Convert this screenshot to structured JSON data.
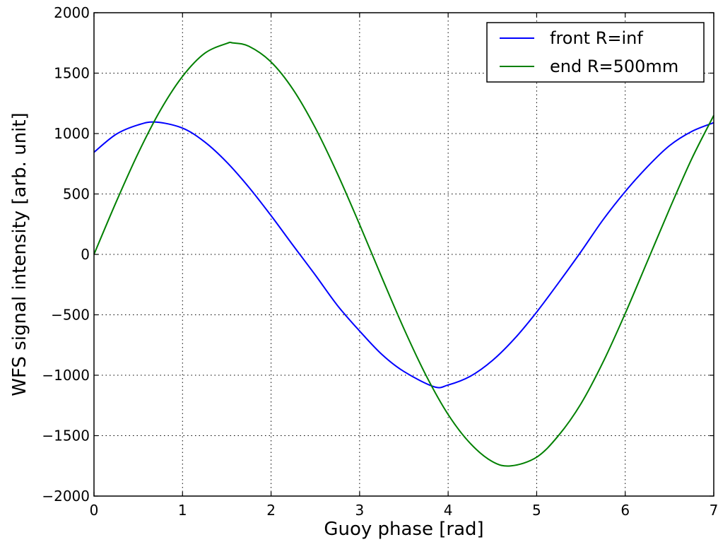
{
  "chart_data": {
    "type": "line",
    "title": "",
    "xlabel": "Guoy phase [rad]",
    "ylabel": "WFS signal intensity [arb. unit]",
    "xlim": [
      0,
      7
    ],
    "ylim": [
      -2000,
      2000
    ],
    "xticks": [
      0,
      1,
      2,
      3,
      4,
      5,
      6,
      7
    ],
    "xtick_labels": [
      "0",
      "1",
      "2",
      "3",
      "4",
      "5",
      "6",
      "7"
    ],
    "yticks": [
      -2000,
      -1500,
      -1000,
      -500,
      0,
      500,
      1000,
      1500,
      2000
    ],
    "ytick_labels": [
      "−2000",
      "−1500",
      "−1000",
      "−500",
      "0",
      "500",
      "1000",
      "1500",
      "2000"
    ],
    "grid": true,
    "legend_position": "top-right",
    "series": [
      {
        "name": "front R=inf",
        "color": "#0000ff",
        "x": [
          0.0,
          0.25,
          0.5,
          0.7,
          1.0,
          1.25,
          1.5,
          1.75,
          2.0,
          2.25,
          2.5,
          2.75,
          3.0,
          3.25,
          3.5,
          3.84,
          4.0,
          4.25,
          4.5,
          4.75,
          5.0,
          5.25,
          5.5,
          5.75,
          6.0,
          6.25,
          6.5,
          6.75,
          7.0
        ],
        "y": [
          845,
          994,
          1072,
          1095,
          1045,
          931,
          763,
          555,
          321,
          73,
          -171,
          -423,
          -634,
          -827,
          -969,
          -1095,
          -1081,
          -1009,
          -878,
          -697,
          -477,
          -232,
          22,
          287,
          520,
          725,
          900,
          1017,
          1090
        ]
      },
      {
        "name": "end R=500mm",
        "color": "#008000",
        "x": [
          0.0,
          0.25,
          0.5,
          0.75,
          1.0,
          1.25,
          1.5,
          1.57,
          1.75,
          2.0,
          2.25,
          2.5,
          2.75,
          3.0,
          3.25,
          3.5,
          3.75,
          4.0,
          4.25,
          4.5,
          4.71,
          5.0,
          5.25,
          5.5,
          5.75,
          6.0,
          6.25,
          6.5,
          6.75,
          7.0
        ],
        "y": [
          0,
          433,
          839,
          1193,
          1473,
          1664,
          1746,
          1750,
          1722,
          1592,
          1363,
          1047,
          667,
          247,
          -189,
          -614,
          -1001,
          -1325,
          -1564,
          -1715,
          -1750,
          -1678,
          -1496,
          -1236,
          -891,
          -489,
          -58,
          375,
          789,
          1150
        ]
      }
    ]
  }
}
